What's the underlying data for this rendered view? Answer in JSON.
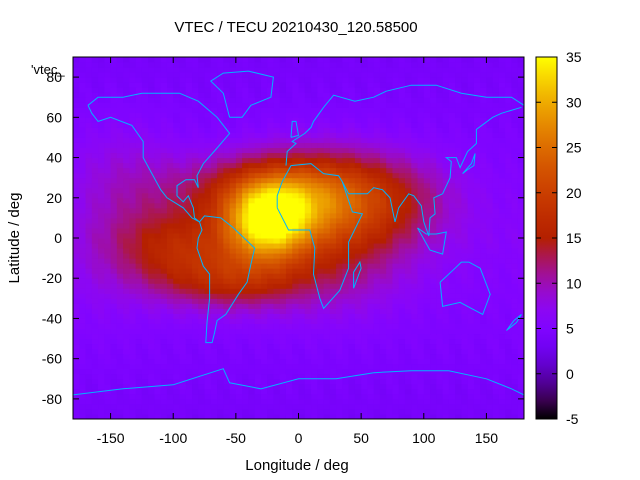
{
  "chart_data": {
    "type": "heatmap",
    "title": "VTEC / TECU 20210430_120.58500",
    "xlabel": "Longitude / deg",
    "ylabel": "Latitude / deg",
    "series_label": "'vtec_",
    "xlim": [
      -180,
      180
    ],
    "ylim": [
      -90,
      90
    ],
    "xticks": [
      -150,
      -100,
      -50,
      0,
      50,
      100,
      150
    ],
    "yticks": [
      -80,
      -60,
      -40,
      -20,
      0,
      20,
      40,
      60,
      80
    ],
    "colorbar": {
      "min": -5,
      "max": 35,
      "ticks": [
        -5,
        0,
        5,
        10,
        15,
        20,
        25,
        30,
        35
      ]
    },
    "grid_resolution": {
      "lon_step": 5,
      "lat_step": 2.5
    },
    "anomalies": [
      {
        "lon": -25,
        "lat": 8,
        "sigma_lon": 24,
        "sigma_lat": 14,
        "amp": 24
      },
      {
        "lon": 15,
        "lat": 22,
        "sigma_lon": 40,
        "sigma_lat": 15,
        "amp": 13
      },
      {
        "lon": -55,
        "lat": 25,
        "sigma_lon": 45,
        "sigma_lat": 12,
        "amp": 6
      },
      {
        "lon": -95,
        "lat": -5,
        "sigma_lon": 38,
        "sigma_lat": 14,
        "amp": 10
      },
      {
        "lon": -50,
        "lat": -22,
        "sigma_lon": 40,
        "sigma_lat": 10,
        "amp": 8
      },
      {
        "lon": 30,
        "lat": 0,
        "sigma_lon": 40,
        "sigma_lat": 22,
        "amp": 8
      },
      {
        "lon": 80,
        "lat": 20,
        "sigma_lon": 35,
        "sigma_lat": 15,
        "amp": 5
      },
      {
        "lon": -140,
        "lat": 30,
        "sigma_lon": 30,
        "sigma_lat": 20,
        "amp": 3
      },
      {
        "lon": -160,
        "lat": -20,
        "sigma_lon": 30,
        "sigma_lat": 25,
        "amp": 1
      }
    ],
    "background_value": 6,
    "coastline_color": "#00b4ff",
    "colormap": [
      "#000000",
      "#800080",
      "#e00000",
      "#ff8000",
      "#ffff00"
    ]
  }
}
